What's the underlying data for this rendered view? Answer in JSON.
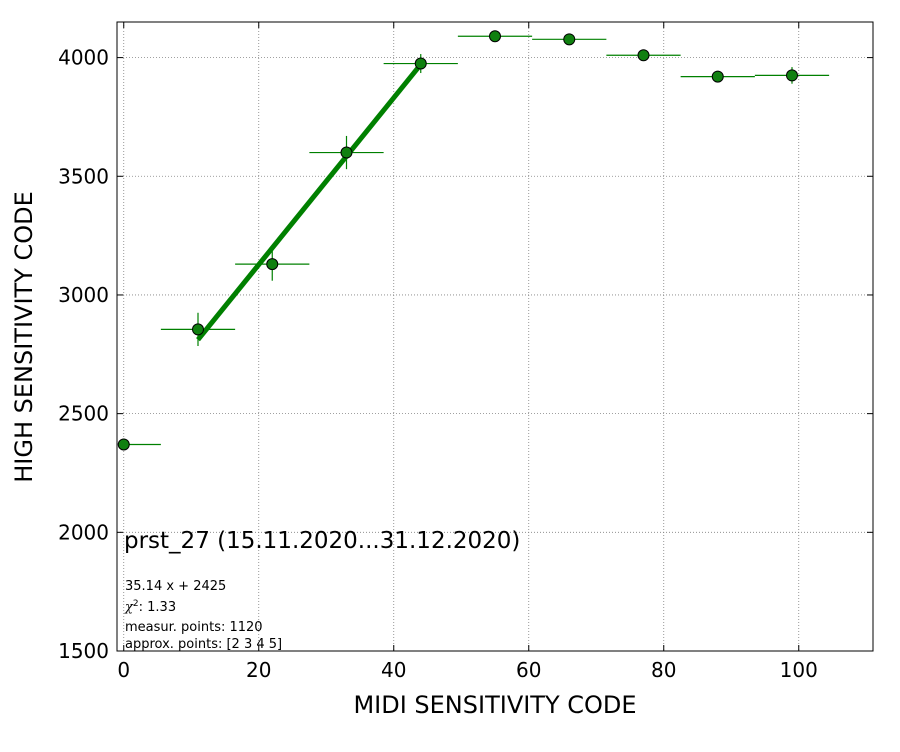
{
  "chart_data": {
    "type": "scatter",
    "title": "",
    "xlabel": "MIDI SENSITIVITY CODE",
    "ylabel": "HIGH SENSITIVITY CODE",
    "xlim": [
      -1,
      111
    ],
    "ylim": [
      1500,
      4150
    ],
    "xticks": [
      0,
      20,
      40,
      60,
      80,
      100
    ],
    "yticks": [
      1500,
      2000,
      2500,
      3000,
      3500,
      4000
    ],
    "grid": true,
    "grid_style": "dotted",
    "colors": {
      "series": "#008000",
      "marker_fill": "#108010",
      "marker_edge": "#000000",
      "grid": "#808080"
    },
    "series": [
      {
        "points": [
          {
            "x": 0,
            "y": 2370,
            "xerr": [
              0,
              5.5
            ],
            "yerr": 0
          },
          {
            "x": 11,
            "y": 2855,
            "xerr": [
              5.5,
              5.5
            ],
            "yerr": 70
          },
          {
            "x": 22,
            "y": 3130,
            "xerr": [
              5.5,
              5.5
            ],
            "yerr": 70
          },
          {
            "x": 33,
            "y": 3600,
            "xerr": [
              5.5,
              5.5
            ],
            "yerr": 70
          },
          {
            "x": 44,
            "y": 3975,
            "xerr": [
              5.5,
              5.5
            ],
            "yerr": 40
          },
          {
            "x": 55,
            "y": 4090,
            "xerr": [
              5.5,
              5.5
            ],
            "yerr": 0
          },
          {
            "x": 66,
            "y": 4077,
            "xerr": [
              5.5,
              5.5
            ],
            "yerr": 0
          },
          {
            "x": 77,
            "y": 4010,
            "xerr": [
              5.5,
              5.5
            ],
            "yerr": 0
          },
          {
            "x": 88,
            "y": 3920,
            "xerr": [
              5.5,
              5.5
            ],
            "yerr": 0
          },
          {
            "x": 99,
            "y": 3925,
            "xerr": [
              5.5,
              5.5
            ],
            "yerr": 35
          }
        ]
      }
    ],
    "fit": {
      "slope": 35.14,
      "intercept": 2425,
      "x_range": [
        11,
        44
      ]
    },
    "annotations": {
      "main": "prst_27 (15.11.2020...31.12.2020)",
      "equation": "35.14 x + 2425",
      "chi2_value": "1.33",
      "measur_points": "measur. points: 1120",
      "approx_points": "approx. points: [2 3 4 5]"
    }
  }
}
